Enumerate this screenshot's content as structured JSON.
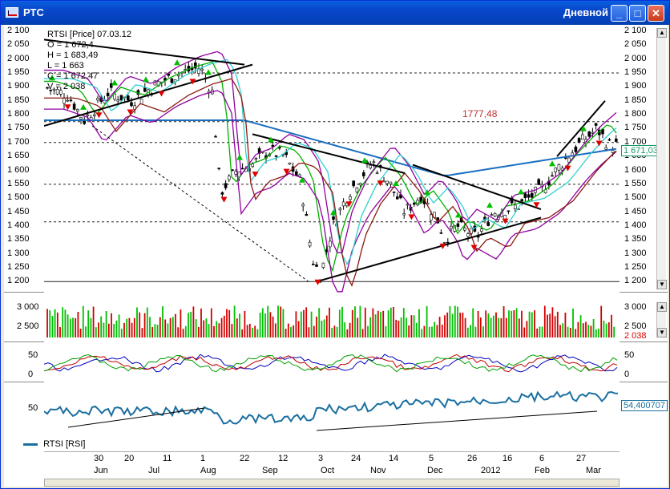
{
  "window": {
    "title": "РТС",
    "period": "Дневной",
    "buttons": {
      "minimize": "_",
      "maximize": "□",
      "close": "✕"
    }
  },
  "main_chart": {
    "yticks": [
      "2 100",
      "2 050",
      "2 000",
      "1 950",
      "1 900",
      "1 850",
      "1 800",
      "1 750",
      "1 700",
      "1 650",
      "1 600",
      "1 550",
      "1 500",
      "1 450",
      "1 400",
      "1 350",
      "1 300",
      "1 250",
      "1 200"
    ],
    "info": [
      "RTSI [Price] 07.03.12",
      "O = 1 672,4",
      "H = 1 683,49",
      "L = 1 663",
      "C = 1 672,47",
      "V = 2 038"
    ],
    "annotation": "1777,48",
    "last_value": "1 671,03"
  },
  "volume": {
    "yticks": [
      "3 000",
      "2 500"
    ],
    "last_value": "2 038"
  },
  "stoch": {
    "yticks": [
      "50",
      "0"
    ]
  },
  "rsi": {
    "ytick": "50",
    "last_value": "54,400707",
    "legend": "RTSI [RSI]"
  },
  "xaxis": {
    "days": [
      "30",
      "20",
      "11",
      "1",
      "22",
      "12",
      "3",
      "24",
      "14",
      "5",
      "26",
      "16",
      "6",
      "27"
    ],
    "months": [
      "Jun",
      "Jul",
      "Aug",
      "Sep",
      "Oct",
      "Nov",
      "Dec",
      "2012",
      "Feb",
      "Mar"
    ]
  },
  "colors": {
    "accent": "#0A5FE0",
    "up": "#00c000",
    "down": "#e00000",
    "ma": "#0066cc"
  }
}
